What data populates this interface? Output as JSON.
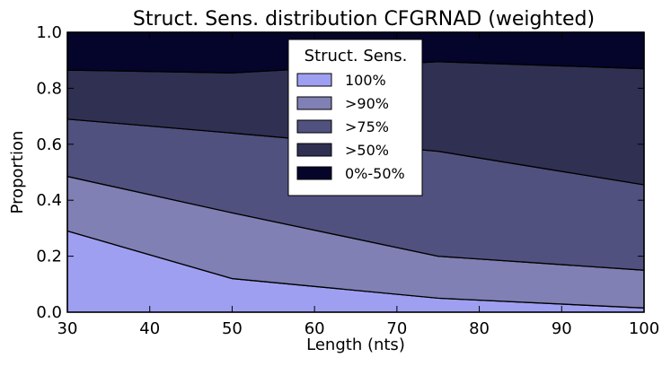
{
  "chart_data": {
    "type": "area",
    "stacked": true,
    "title": "Struct. Sens. distribution CFGRNAD (weighted)",
    "xlabel": "Length (nts)",
    "ylabel": "Proportion",
    "xlim": [
      30,
      100
    ],
    "ylim": [
      0.0,
      1.0
    ],
    "x": [
      30,
      50,
      75,
      100
    ],
    "x_ticks": [
      "30",
      "40",
      "50",
      "60",
      "70",
      "80",
      "90",
      "100"
    ],
    "y_ticks": [
      "0.0",
      "0.2",
      "0.4",
      "0.6",
      "0.8",
      "1.0"
    ],
    "grid": false,
    "legend": {
      "title": "Struct. Sens.",
      "position": "top-center"
    },
    "series": [
      {
        "name": "100%",
        "color": "#9f9ff2",
        "values": [
          0.29,
          0.12,
          0.05,
          0.015
        ]
      },
      {
        "name": ">90%",
        "color": "#8080b4",
        "values": [
          0.195,
          0.235,
          0.15,
          0.135
        ]
      },
      {
        "name": ">75%",
        "color": "#51517f",
        "values": [
          0.205,
          0.285,
          0.375,
          0.305
        ]
      },
      {
        "name": ">50%",
        "color": "#303052",
        "values": [
          0.175,
          0.215,
          0.32,
          0.415
        ]
      },
      {
        "name": "0%-50%",
        "color": "#05052b",
        "values": [
          0.135,
          0.145,
          0.105,
          0.13
        ]
      }
    ]
  }
}
